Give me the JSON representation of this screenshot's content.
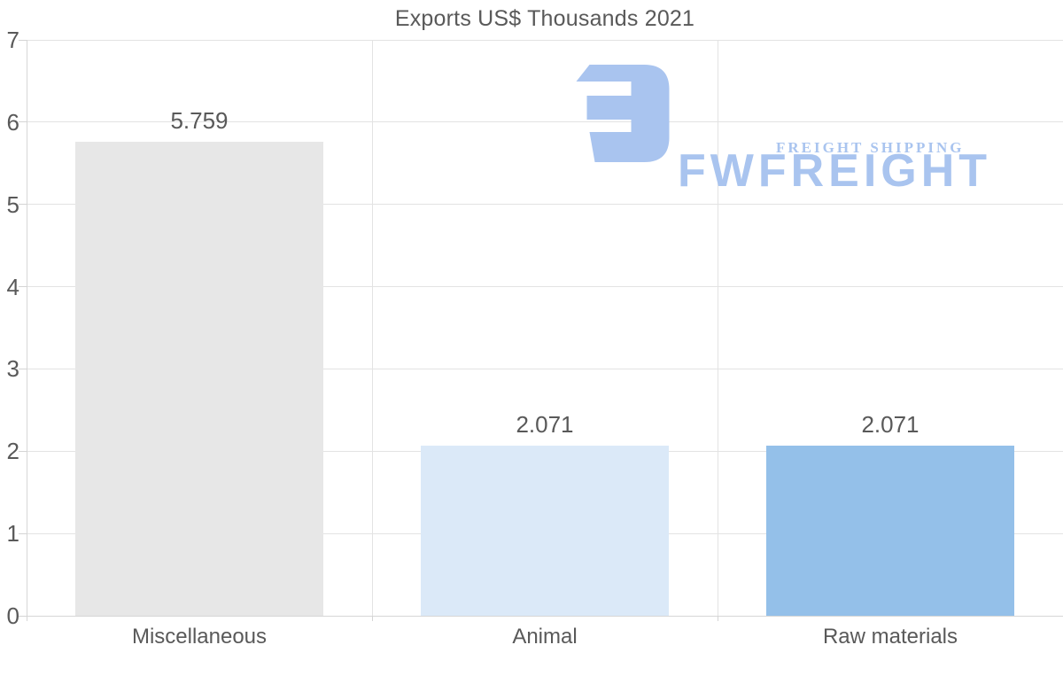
{
  "title": "Exports US$ Thousands 2021",
  "chart_data": {
    "type": "bar",
    "title": "Exports US$ Thousands 2021",
    "categories": [
      "Miscellaneous",
      "Animal",
      "Raw materials"
    ],
    "values": [
      5.759,
      2.071,
      2.071
    ],
    "value_labels": [
      "5.759",
      "2.071",
      "2.071"
    ],
    "bar_colors": [
      "#e7e7e7",
      "#dbe9f8",
      "#94c0e9"
    ],
    "xlabel": "",
    "ylabel": "",
    "ylim": [
      0,
      7
    ],
    "yticks": [
      0,
      1,
      2,
      3,
      4,
      5,
      6,
      7
    ],
    "ytick_labels": [
      "0",
      "1",
      "2",
      "3",
      "4",
      "5",
      "6",
      "7"
    ],
    "grid": true,
    "legend": false
  },
  "watermark": {
    "brand": "FWFREIGHT",
    "tagline": "FREIGHT SHIPPING",
    "color": "#a9c4ef"
  },
  "colors": {
    "background": "#ffffff",
    "text": "#595959",
    "gridline": "#e3e3e3",
    "axis": "#d6d6d6"
  }
}
